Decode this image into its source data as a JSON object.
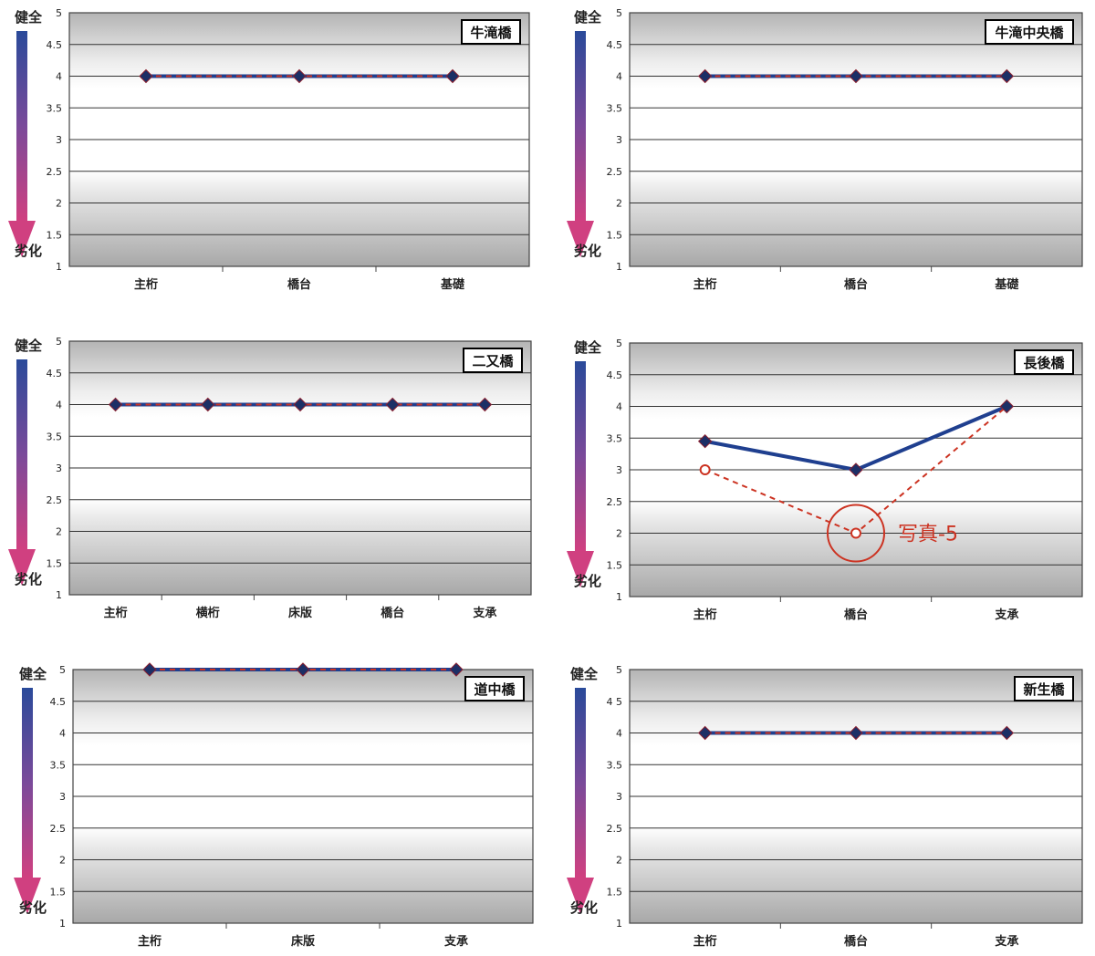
{
  "scale_labels": {
    "top": "健全",
    "bottom": "劣化"
  },
  "colors": {
    "series_solid": "#1f3f8f",
    "series_dashed": "#cc3322",
    "marker": "#1c2f66",
    "arrow_top": "#2a4a9a",
    "arrow_bottom": "#d04080",
    "annotation": "#cc3322"
  },
  "chart_data": [
    {
      "type": "line",
      "title": "牛滝橋",
      "categories": [
        "主桁",
        "橋台",
        "基礎"
      ],
      "ylim": [
        1,
        5
      ],
      "yticks": [
        "1",
        "1.5",
        "2",
        "2.5",
        "3",
        "3.5",
        "4",
        "4.5",
        "5"
      ],
      "grid": true,
      "series": [
        {
          "style": "solid",
          "values": [
            4,
            4,
            4
          ]
        },
        {
          "style": "dashed",
          "values": [
            4,
            4,
            4
          ]
        }
      ]
    },
    {
      "type": "line",
      "title": "牛滝中央橋",
      "categories": [
        "主桁",
        "橋台",
        "基礎"
      ],
      "ylim": [
        1,
        5
      ],
      "yticks": [
        "1",
        "1.5",
        "2",
        "2.5",
        "3",
        "3.5",
        "4",
        "4.5",
        "5"
      ],
      "grid": true,
      "series": [
        {
          "style": "solid",
          "values": [
            4,
            4,
            4
          ]
        },
        {
          "style": "dashed",
          "values": [
            4,
            4,
            4
          ]
        }
      ]
    },
    {
      "type": "line",
      "title": "二又橋",
      "categories": [
        "主桁",
        "横桁",
        "床版",
        "橋台",
        "支承"
      ],
      "ylim": [
        1,
        5
      ],
      "yticks": [
        "1",
        "1.5",
        "2",
        "2.5",
        "3",
        "3.5",
        "4",
        "4.5",
        "5"
      ],
      "grid": true,
      "series": [
        {
          "style": "solid",
          "values": [
            4,
            4,
            4,
            4,
            4
          ]
        },
        {
          "style": "dashed",
          "values": [
            4,
            4,
            4,
            4,
            4
          ]
        }
      ]
    },
    {
      "type": "line",
      "title": "長後橋",
      "categories": [
        "主桁",
        "橋台",
        "支承"
      ],
      "ylim": [
        1,
        5
      ],
      "yticks": [
        "1",
        "1.5",
        "2",
        "2.5",
        "3",
        "3.5",
        "4",
        "4.5",
        "5"
      ],
      "grid": true,
      "series": [
        {
          "style": "solid",
          "values": [
            3.45,
            3,
            4
          ]
        },
        {
          "style": "dashed",
          "values": [
            3,
            2,
            4
          ]
        }
      ],
      "annotation": {
        "text": "写真-5",
        "category_index": 1,
        "value": 2
      }
    },
    {
      "type": "line",
      "title": "道中橋",
      "categories": [
        "主桁",
        "床版",
        "支承"
      ],
      "ylim": [
        1,
        5
      ],
      "yticks": [
        "1",
        "1.5",
        "2",
        "2.5",
        "3",
        "3.5",
        "4",
        "4.5",
        "5"
      ],
      "grid": true,
      "series": [
        {
          "style": "solid",
          "values": [
            5,
            5,
            5
          ]
        },
        {
          "style": "dashed",
          "values": [
            5,
            5,
            5
          ]
        }
      ]
    },
    {
      "type": "line",
      "title": "新生橋",
      "categories": [
        "主桁",
        "橋台",
        "支承"
      ],
      "ylim": [
        1,
        5
      ],
      "yticks": [
        "1",
        "1.5",
        "2",
        "2.5",
        "3",
        "3.5",
        "4",
        "4 5",
        "5"
      ],
      "grid": true,
      "series": [
        {
          "style": "solid",
          "values": [
            4,
            4,
            4
          ]
        },
        {
          "style": "dashed",
          "values": [
            4,
            4,
            4
          ]
        }
      ]
    }
  ]
}
